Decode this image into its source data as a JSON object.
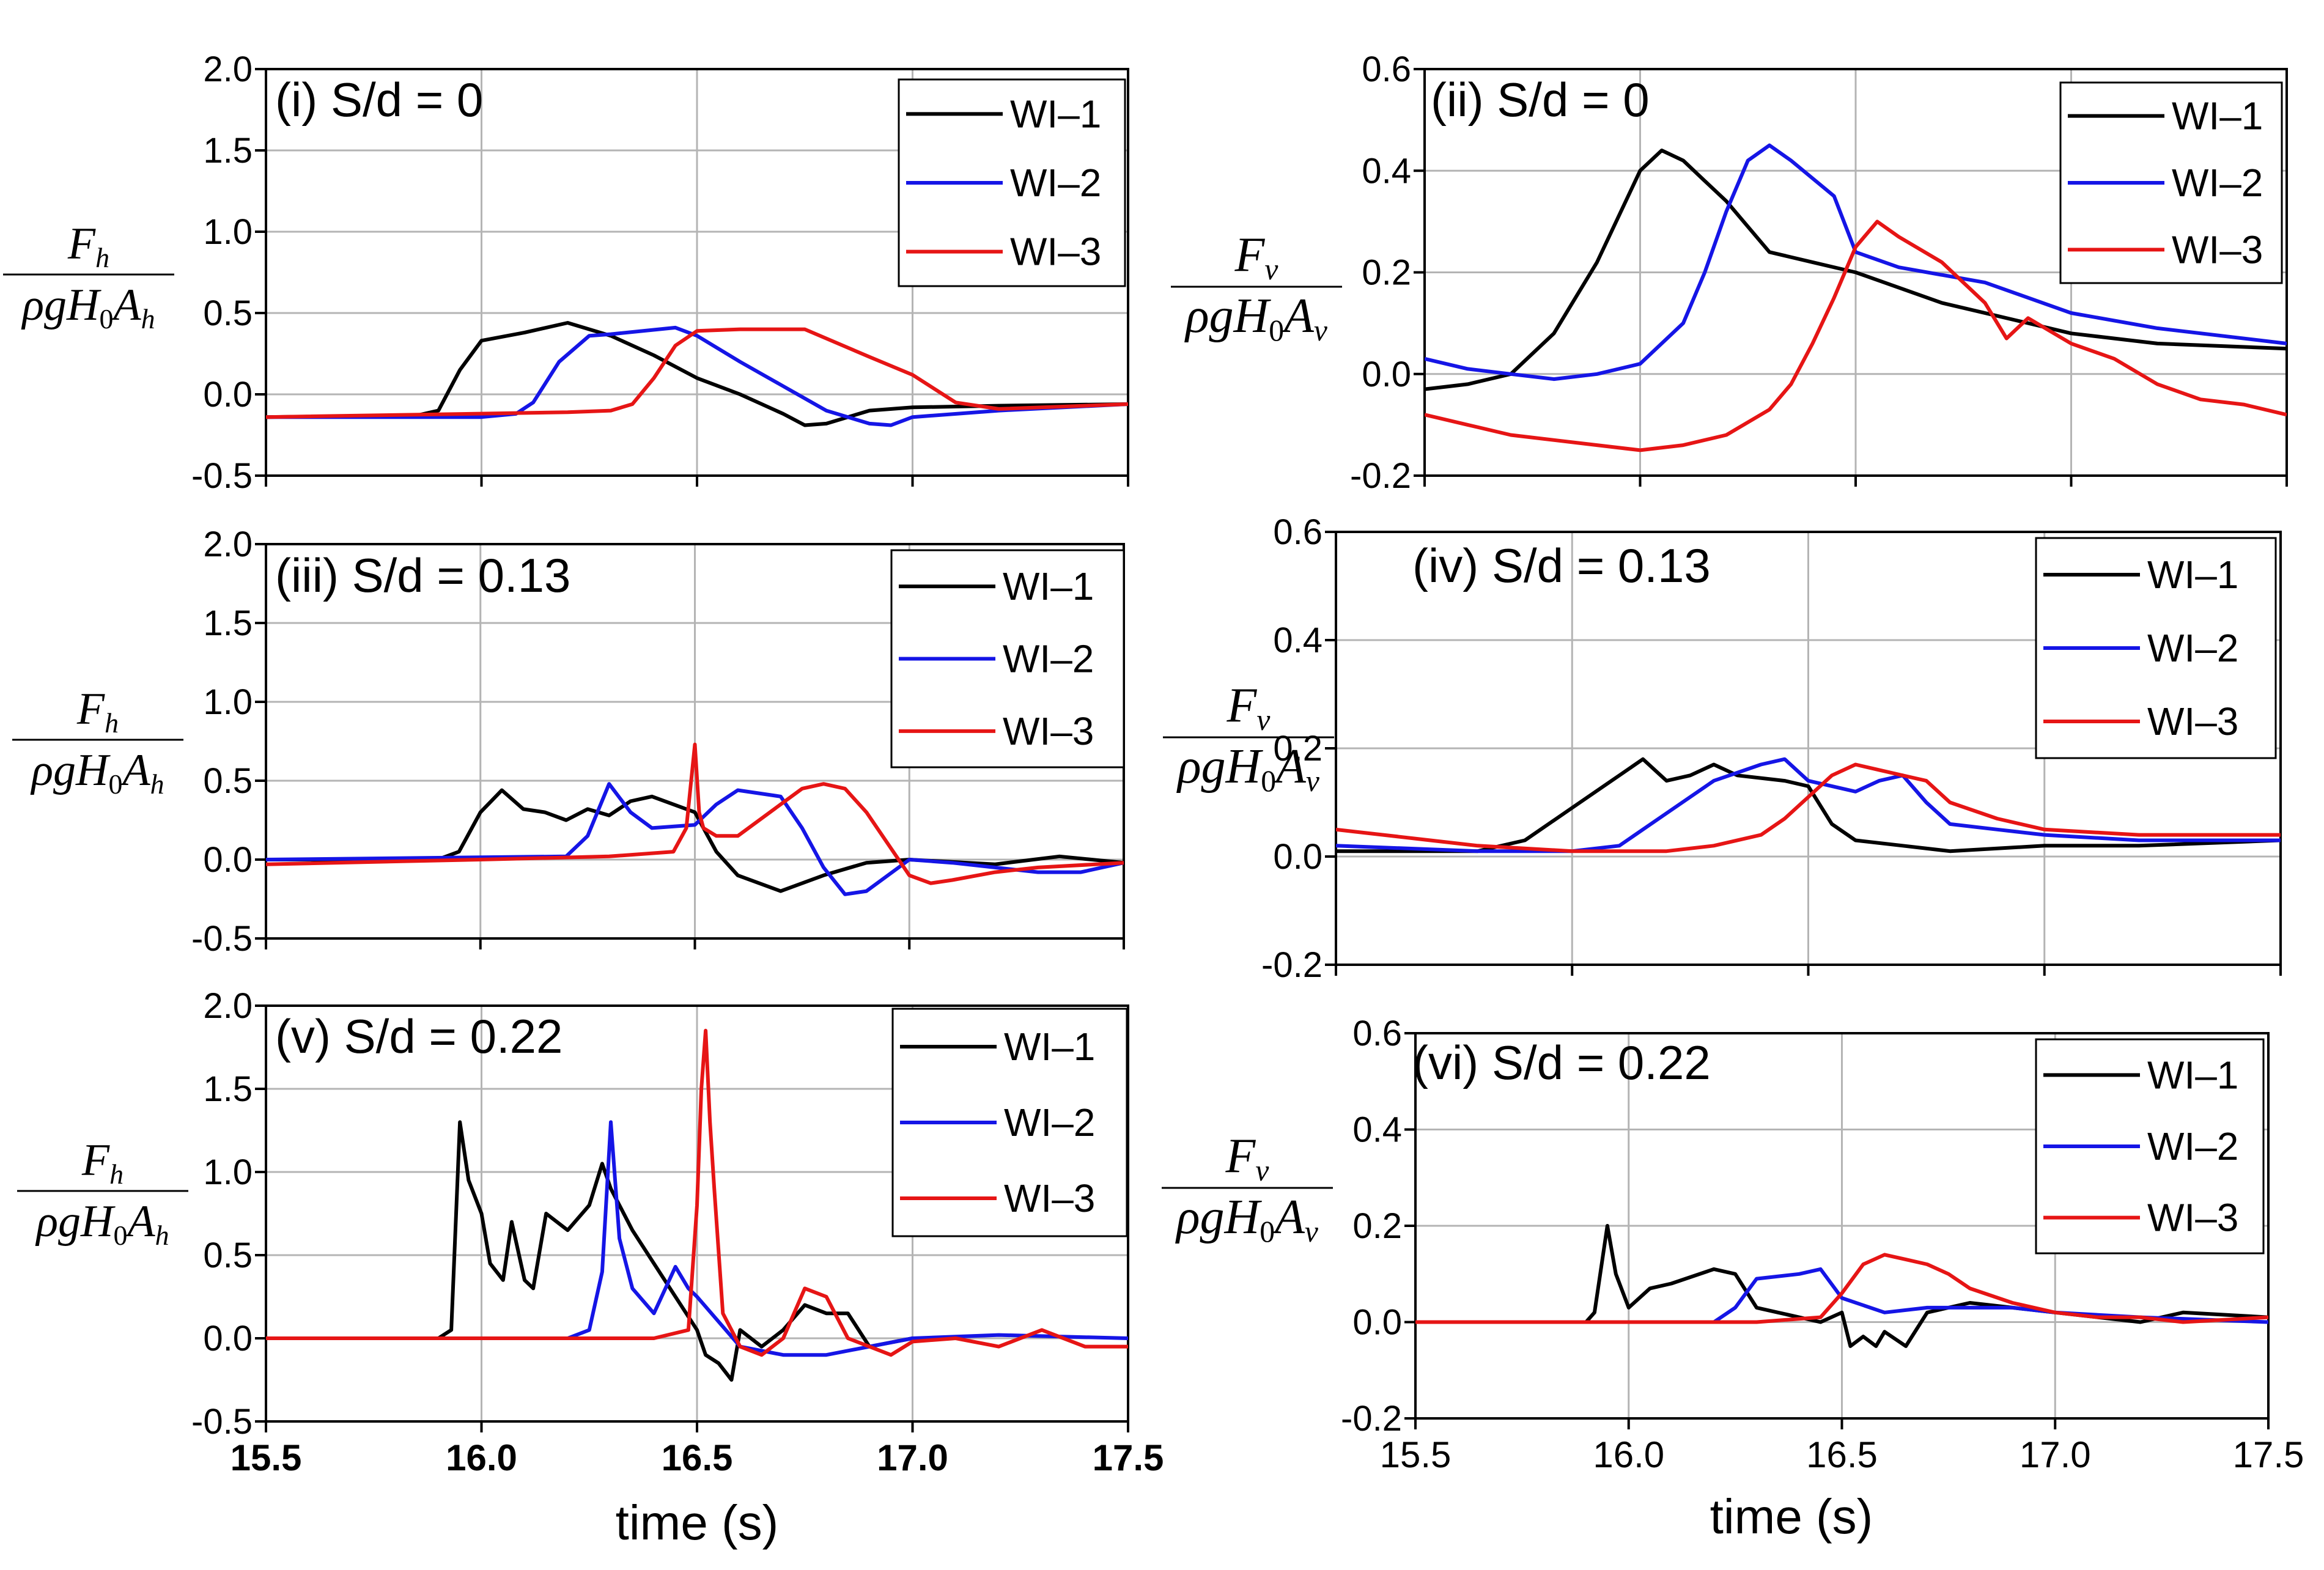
{
  "x_axis_title": "time (s)",
  "colors": {
    "WI-1": "#000000",
    "WI-2": "#1515e6",
    "WI-3": "#e61515"
  },
  "ylabel_h": {
    "num": "F",
    "num_sub": "h",
    "den_rho": "ρ",
    "den_g": "g",
    "den_H": "H",
    "den_H_sub": "0",
    "den_A": "A",
    "den_A_sub": "h"
  },
  "ylabel_v": {
    "num": "F",
    "num_sub": "v",
    "den_rho": "ρ",
    "den_g": "g",
    "den_H": "H",
    "den_H_sub": "0",
    "den_A": "A",
    "den_A_sub": "v"
  },
  "chart_data": [
    {
      "type": "line",
      "title": "(i) S/d = 0",
      "xlim": [
        15.5,
        17.5
      ],
      "ylim": [
        -0.5,
        2.0
      ],
      "xticks": [
        15.5,
        16.0,
        16.5,
        17.0,
        17.5
      ],
      "yticks": [
        -0.5,
        0.0,
        0.5,
        1.0,
        1.5,
        2.0
      ],
      "ytick_labels": [
        "-0.5",
        "0.0",
        "0.5",
        "1.0",
        "1.5",
        "2.0"
      ],
      "grid": true,
      "legend_position": "top-right",
      "series": [
        {
          "name": "WI–1",
          "x": [
            15.5,
            15.85,
            15.9,
            15.95,
            16.0,
            16.1,
            16.2,
            16.3,
            16.4,
            16.5,
            16.6,
            16.7,
            16.75,
            16.8,
            16.9,
            17.0,
            17.2,
            17.5
          ],
          "y": [
            -0.14,
            -0.13,
            -0.1,
            0.15,
            0.33,
            0.38,
            0.44,
            0.36,
            0.24,
            0.1,
            0.0,
            -0.12,
            -0.19,
            -0.18,
            -0.1,
            -0.08,
            -0.07,
            -0.06
          ]
        },
        {
          "name": "WI–2",
          "x": [
            15.5,
            16.0,
            16.08,
            16.12,
            16.18,
            16.25,
            16.3,
            16.45,
            16.5,
            16.6,
            16.7,
            16.8,
            16.9,
            16.95,
            17.0,
            17.2,
            17.5
          ],
          "y": [
            -0.14,
            -0.14,
            -0.12,
            -0.05,
            0.2,
            0.36,
            0.37,
            0.41,
            0.36,
            0.2,
            0.05,
            -0.1,
            -0.18,
            -0.19,
            -0.14,
            -0.1,
            -0.06
          ]
        },
        {
          "name": "WI–3",
          "x": [
            15.5,
            16.2,
            16.3,
            16.35,
            16.4,
            16.45,
            16.5,
            16.6,
            16.75,
            16.9,
            17.0,
            17.1,
            17.2,
            17.5
          ],
          "y": [
            -0.14,
            -0.11,
            -0.1,
            -0.06,
            0.1,
            0.3,
            0.39,
            0.4,
            0.4,
            0.23,
            0.12,
            -0.05,
            -0.09,
            -0.06
          ]
        }
      ]
    },
    {
      "type": "line",
      "title": "(ii) S/d = 0",
      "xlim": [
        15.5,
        17.5
      ],
      "ylim": [
        -0.2,
        0.6
      ],
      "xticks": [
        15.5,
        16.0,
        16.5,
        17.0,
        17.5
      ],
      "yticks": [
        -0.2,
        0.0,
        0.2,
        0.4,
        0.6
      ],
      "ytick_labels": [
        "-0.2",
        "0.0",
        "0.2",
        "0.4",
        "0.6"
      ],
      "grid": true,
      "legend_position": "top-right",
      "series": [
        {
          "name": "WI–1",
          "x": [
            15.5,
            15.6,
            15.7,
            15.8,
            15.9,
            16.0,
            16.05,
            16.1,
            16.15,
            16.2,
            16.3,
            16.4,
            16.5,
            16.7,
            16.9,
            17.0,
            17.2,
            17.5
          ],
          "y": [
            -0.03,
            -0.02,
            0.0,
            0.08,
            0.22,
            0.4,
            0.44,
            0.42,
            0.38,
            0.34,
            0.24,
            0.22,
            0.2,
            0.14,
            0.1,
            0.08,
            0.06,
            0.05
          ]
        },
        {
          "name": "WI–2",
          "x": [
            15.5,
            15.6,
            15.7,
            15.8,
            15.9,
            16.0,
            16.1,
            16.15,
            16.2,
            16.25,
            16.3,
            16.35,
            16.45,
            16.5,
            16.6,
            16.8,
            17.0,
            17.2,
            17.5
          ],
          "y": [
            0.03,
            0.01,
            0.0,
            -0.01,
            0.0,
            0.02,
            0.1,
            0.2,
            0.32,
            0.42,
            0.45,
            0.42,
            0.35,
            0.24,
            0.21,
            0.18,
            0.12,
            0.09,
            0.06
          ]
        },
        {
          "name": "WI–3",
          "x": [
            15.5,
            15.6,
            15.7,
            15.8,
            15.9,
            16.0,
            16.1,
            16.2,
            16.3,
            16.35,
            16.4,
            16.45,
            16.5,
            16.55,
            16.6,
            16.7,
            16.8,
            16.85,
            16.9,
            17.0,
            17.1,
            17.2,
            17.3,
            17.4,
            17.5
          ],
          "y": [
            -0.08,
            -0.1,
            -0.12,
            -0.13,
            -0.14,
            -0.15,
            -0.14,
            -0.12,
            -0.07,
            -0.02,
            0.06,
            0.15,
            0.25,
            0.3,
            0.27,
            0.22,
            0.14,
            0.07,
            0.11,
            0.06,
            0.03,
            -0.02,
            -0.05,
            -0.06,
            -0.08
          ]
        }
      ]
    },
    {
      "type": "line",
      "title": "(iii) S/d = 0.13",
      "xlim": [
        15.5,
        17.5
      ],
      "ylim": [
        -0.5,
        2.0
      ],
      "xticks": [
        15.5,
        16.0,
        16.5,
        17.0,
        17.5
      ],
      "yticks": [
        -0.5,
        0.0,
        0.5,
        1.0,
        1.5,
        2.0
      ],
      "ytick_labels": [
        "-0.5",
        "0.0",
        "0.5",
        "1.0",
        "1.5",
        "2.0"
      ],
      "grid": true,
      "legend_position": "top-right",
      "series": [
        {
          "name": "WI–1",
          "x": [
            15.5,
            15.9,
            15.95,
            16.0,
            16.05,
            16.1,
            16.15,
            16.2,
            16.25,
            16.3,
            16.35,
            16.4,
            16.5,
            16.55,
            16.6,
            16.7,
            16.8,
            16.9,
            17.0,
            17.2,
            17.35,
            17.5
          ],
          "y": [
            0.0,
            0.0,
            0.05,
            0.3,
            0.44,
            0.32,
            0.3,
            0.25,
            0.32,
            0.28,
            0.37,
            0.4,
            0.3,
            0.05,
            -0.1,
            -0.2,
            -0.1,
            -0.02,
            0.0,
            -0.03,
            0.02,
            -0.02
          ]
        },
        {
          "name": "WI–2",
          "x": [
            15.5,
            16.2,
            16.25,
            16.3,
            16.35,
            16.4,
            16.5,
            16.55,
            16.6,
            16.7,
            16.75,
            16.8,
            16.85,
            16.9,
            17.0,
            17.1,
            17.2,
            17.3,
            17.4,
            17.5
          ],
          "y": [
            0.0,
            0.02,
            0.15,
            0.48,
            0.3,
            0.2,
            0.22,
            0.35,
            0.44,
            0.4,
            0.2,
            -0.05,
            -0.22,
            -0.2,
            0.0,
            -0.02,
            -0.05,
            -0.08,
            -0.08,
            -0.02
          ]
        },
        {
          "name": "WI–3",
          "x": [
            15.5,
            16.0,
            16.3,
            16.45,
            16.48,
            16.5,
            16.51,
            16.52,
            16.55,
            16.6,
            16.7,
            16.75,
            16.8,
            16.85,
            16.9,
            16.95,
            17.0,
            17.05,
            17.1,
            17.2,
            17.3,
            17.5
          ],
          "y": [
            -0.03,
            0.0,
            0.02,
            0.05,
            0.2,
            0.73,
            0.3,
            0.2,
            0.15,
            0.15,
            0.35,
            0.45,
            0.48,
            0.45,
            0.3,
            0.1,
            -0.1,
            -0.15,
            -0.13,
            -0.08,
            -0.05,
            -0.02
          ]
        }
      ]
    },
    {
      "type": "line",
      "title": "(iv) S/d = 0.13",
      "xlim": [
        15.5,
        17.5
      ],
      "ylim": [
        -0.2,
        0.6
      ],
      "xticks": [
        15.5,
        16.0,
        16.5,
        17.0,
        17.5
      ],
      "yticks": [
        -0.2,
        0.0,
        0.2,
        0.4,
        0.6
      ],
      "ytick_labels": [
        "-0.2",
        "0.0",
        "0.2",
        "0.4",
        "0.6"
      ],
      "grid": true,
      "legend_position": "top-right",
      "series": [
        {
          "name": "WI–1",
          "x": [
            15.5,
            15.8,
            15.9,
            16.0,
            16.1,
            16.15,
            16.2,
            16.25,
            16.3,
            16.35,
            16.45,
            16.5,
            16.55,
            16.6,
            16.7,
            16.8,
            17.0,
            17.2,
            17.5
          ],
          "y": [
            0.01,
            0.01,
            0.03,
            0.09,
            0.15,
            0.18,
            0.14,
            0.15,
            0.17,
            0.15,
            0.14,
            0.13,
            0.06,
            0.03,
            0.02,
            0.01,
            0.02,
            0.02,
            0.03
          ]
        },
        {
          "name": "WI–2",
          "x": [
            15.5,
            15.8,
            16.0,
            16.1,
            16.2,
            16.3,
            16.4,
            16.45,
            16.5,
            16.6,
            16.65,
            16.7,
            16.75,
            16.8,
            16.9,
            17.0,
            17.2,
            17.5
          ],
          "y": [
            0.02,
            0.01,
            0.01,
            0.02,
            0.08,
            0.14,
            0.17,
            0.18,
            0.14,
            0.12,
            0.14,
            0.15,
            0.1,
            0.06,
            0.05,
            0.04,
            0.03,
            0.03
          ]
        },
        {
          "name": "WI–3",
          "x": [
            15.5,
            15.6,
            15.7,
            15.8,
            16.0,
            16.2,
            16.3,
            16.4,
            16.45,
            16.5,
            16.55,
            16.6,
            16.65,
            16.7,
            16.75,
            16.8,
            16.9,
            17.0,
            17.2,
            17.5
          ],
          "y": [
            0.05,
            0.04,
            0.03,
            0.02,
            0.01,
            0.01,
            0.02,
            0.04,
            0.07,
            0.11,
            0.15,
            0.17,
            0.16,
            0.15,
            0.14,
            0.1,
            0.07,
            0.05,
            0.04,
            0.04
          ]
        }
      ]
    },
    {
      "type": "line",
      "title": "(v) S/d = 0.22",
      "xlim": [
        15.5,
        17.5
      ],
      "ylim": [
        -0.5,
        2.0
      ],
      "xticks": [
        15.5,
        16.0,
        16.5,
        17.0,
        17.5
      ],
      "xtick_labels": [
        "15.5",
        "16.0",
        "16.5",
        "17.0",
        "17.5"
      ],
      "yticks": [
        -0.5,
        0.0,
        0.5,
        1.0,
        1.5,
        2.0
      ],
      "ytick_labels": [
        "-0.5",
        "0.0",
        "0.5",
        "1.0",
        "1.5",
        "2.0"
      ],
      "grid": true,
      "legend_position": "top-right",
      "series": [
        {
          "name": "WI–1",
          "x": [
            15.5,
            15.9,
            15.93,
            15.95,
            15.97,
            16.0,
            16.02,
            16.05,
            16.07,
            16.1,
            16.12,
            16.15,
            16.2,
            16.25,
            16.28,
            16.3,
            16.35,
            16.4,
            16.45,
            16.5,
            16.52,
            16.55,
            16.58,
            16.6,
            16.65,
            16.7,
            16.75,
            16.8,
            16.85,
            16.9,
            17.0
          ],
          "y": [
            0.0,
            0.0,
            0.05,
            1.3,
            0.95,
            0.75,
            0.45,
            0.35,
            0.7,
            0.35,
            0.3,
            0.75,
            0.65,
            0.8,
            1.05,
            0.9,
            0.65,
            0.45,
            0.25,
            0.05,
            -0.1,
            -0.15,
            -0.25,
            0.05,
            -0.05,
            0.05,
            0.2,
            0.15,
            0.15,
            -0.05,
            0.0
          ]
        },
        {
          "name": "WI–2",
          "x": [
            15.5,
            16.2,
            16.25,
            16.28,
            16.3,
            16.32,
            16.35,
            16.4,
            16.45,
            16.48,
            16.5,
            16.55,
            16.6,
            16.7,
            16.8,
            17.0,
            17.2,
            17.5
          ],
          "y": [
            0.0,
            0.0,
            0.05,
            0.4,
            1.3,
            0.6,
            0.3,
            0.15,
            0.43,
            0.3,
            0.25,
            0.1,
            -0.05,
            -0.1,
            -0.1,
            0.0,
            0.02,
            0.0
          ]
        },
        {
          "name": "WI–3",
          "x": [
            15.5,
            16.4,
            16.48,
            16.5,
            16.51,
            16.52,
            16.53,
            16.54,
            16.56,
            16.58,
            16.6,
            16.65,
            16.7,
            16.75,
            16.8,
            16.85,
            16.9,
            16.95,
            17.0,
            17.1,
            17.2,
            17.3,
            17.4,
            17.5
          ],
          "y": [
            0.0,
            0.0,
            0.05,
            0.8,
            1.5,
            1.85,
            1.3,
            0.9,
            0.15,
            0.05,
            -0.05,
            -0.1,
            0.0,
            0.3,
            0.25,
            0.0,
            -0.05,
            -0.1,
            -0.02,
            0.0,
            -0.05,
            0.05,
            -0.05,
            -0.05
          ]
        }
      ]
    },
    {
      "type": "line",
      "title": "(vi) S/d = 0.22",
      "xlim": [
        15.5,
        17.5
      ],
      "ylim": [
        -0.2,
        0.6
      ],
      "xticks": [
        15.5,
        16.0,
        16.5,
        17.0,
        17.5
      ],
      "xtick_labels": [
        "15.5",
        "16.0",
        "16.5",
        "17.0",
        "17.5"
      ],
      "yticks": [
        -0.2,
        0.0,
        0.2,
        0.4,
        0.6
      ],
      "ytick_labels": [
        "-0.2",
        "0.0",
        "0.2",
        "0.4",
        "0.6"
      ],
      "grid": true,
      "legend_position": "top-right",
      "series": [
        {
          "name": "WI–1",
          "x": [
            15.5,
            15.9,
            15.92,
            15.95,
            15.97,
            16.0,
            16.05,
            16.1,
            16.2,
            16.25,
            16.3,
            16.35,
            16.45,
            16.5,
            16.52,
            16.55,
            16.58,
            16.6,
            16.65,
            16.7,
            16.8,
            17.0,
            17.2,
            17.3,
            17.5
          ],
          "y": [
            0.0,
            0.0,
            0.02,
            0.2,
            0.1,
            0.03,
            0.07,
            0.08,
            0.11,
            0.1,
            0.03,
            0.02,
            0.0,
            0.02,
            -0.05,
            -0.03,
            -0.05,
            -0.02,
            -0.05,
            0.02,
            0.04,
            0.02,
            0.0,
            0.02,
            0.01
          ]
        },
        {
          "name": "WI–2",
          "x": [
            15.5,
            16.2,
            16.25,
            16.3,
            16.4,
            16.45,
            16.5,
            16.6,
            16.7,
            16.9,
            17.0,
            17.2,
            17.5
          ],
          "y": [
            0.0,
            0.0,
            0.03,
            0.09,
            0.1,
            0.11,
            0.05,
            0.02,
            0.03,
            0.03,
            0.02,
            0.01,
            0.0
          ]
        },
        {
          "name": "WI–3",
          "x": [
            15.5,
            16.3,
            16.45,
            16.5,
            16.55,
            16.6,
            16.65,
            16.7,
            16.75,
            16.8,
            16.9,
            17.0,
            17.1,
            17.2,
            17.3,
            17.5
          ],
          "y": [
            0.0,
            0.0,
            0.01,
            0.06,
            0.12,
            0.14,
            0.13,
            0.12,
            0.1,
            0.07,
            0.04,
            0.02,
            0.01,
            0.01,
            0.0,
            0.01
          ]
        }
      ]
    }
  ]
}
